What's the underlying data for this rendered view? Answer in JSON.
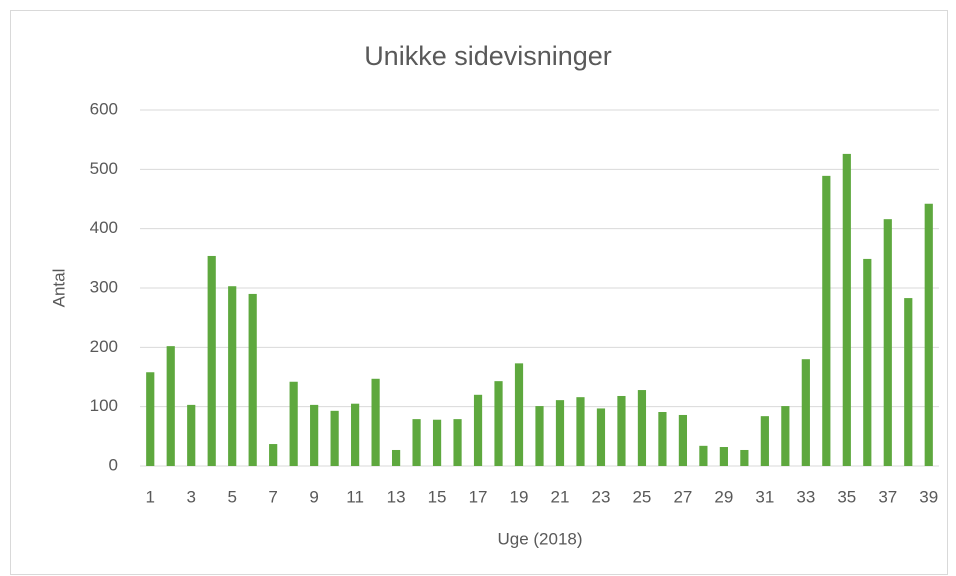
{
  "chart_data": {
    "type": "bar",
    "title": "Unikke sidevisninger",
    "xlabel": "Uge (2018)",
    "ylabel": "Antal",
    "categories": [
      1,
      null,
      3,
      null,
      5,
      null,
      7,
      null,
      9,
      null,
      11,
      null,
      13,
      null,
      15,
      null,
      17,
      null,
      19,
      null,
      21,
      null,
      23,
      null,
      25,
      null,
      27,
      null,
      29,
      null,
      31,
      null,
      33,
      null,
      35,
      null,
      37,
      null,
      39
    ],
    "values": [
      158,
      202,
      103,
      354,
      303,
      290,
      37,
      142,
      103,
      93,
      105,
      147,
      27,
      79,
      78,
      79,
      120,
      143,
      173,
      101,
      111,
      116,
      97,
      118,
      128,
      91,
      86,
      34,
      32,
      27,
      84,
      101,
      180,
      489,
      526,
      349,
      416,
      283,
      442
    ],
    "color": "#5ea83e",
    "ylim": [
      0,
      600
    ],
    "yticks": [
      0,
      100,
      200,
      300,
      400,
      500,
      600
    ],
    "grid": true
  }
}
